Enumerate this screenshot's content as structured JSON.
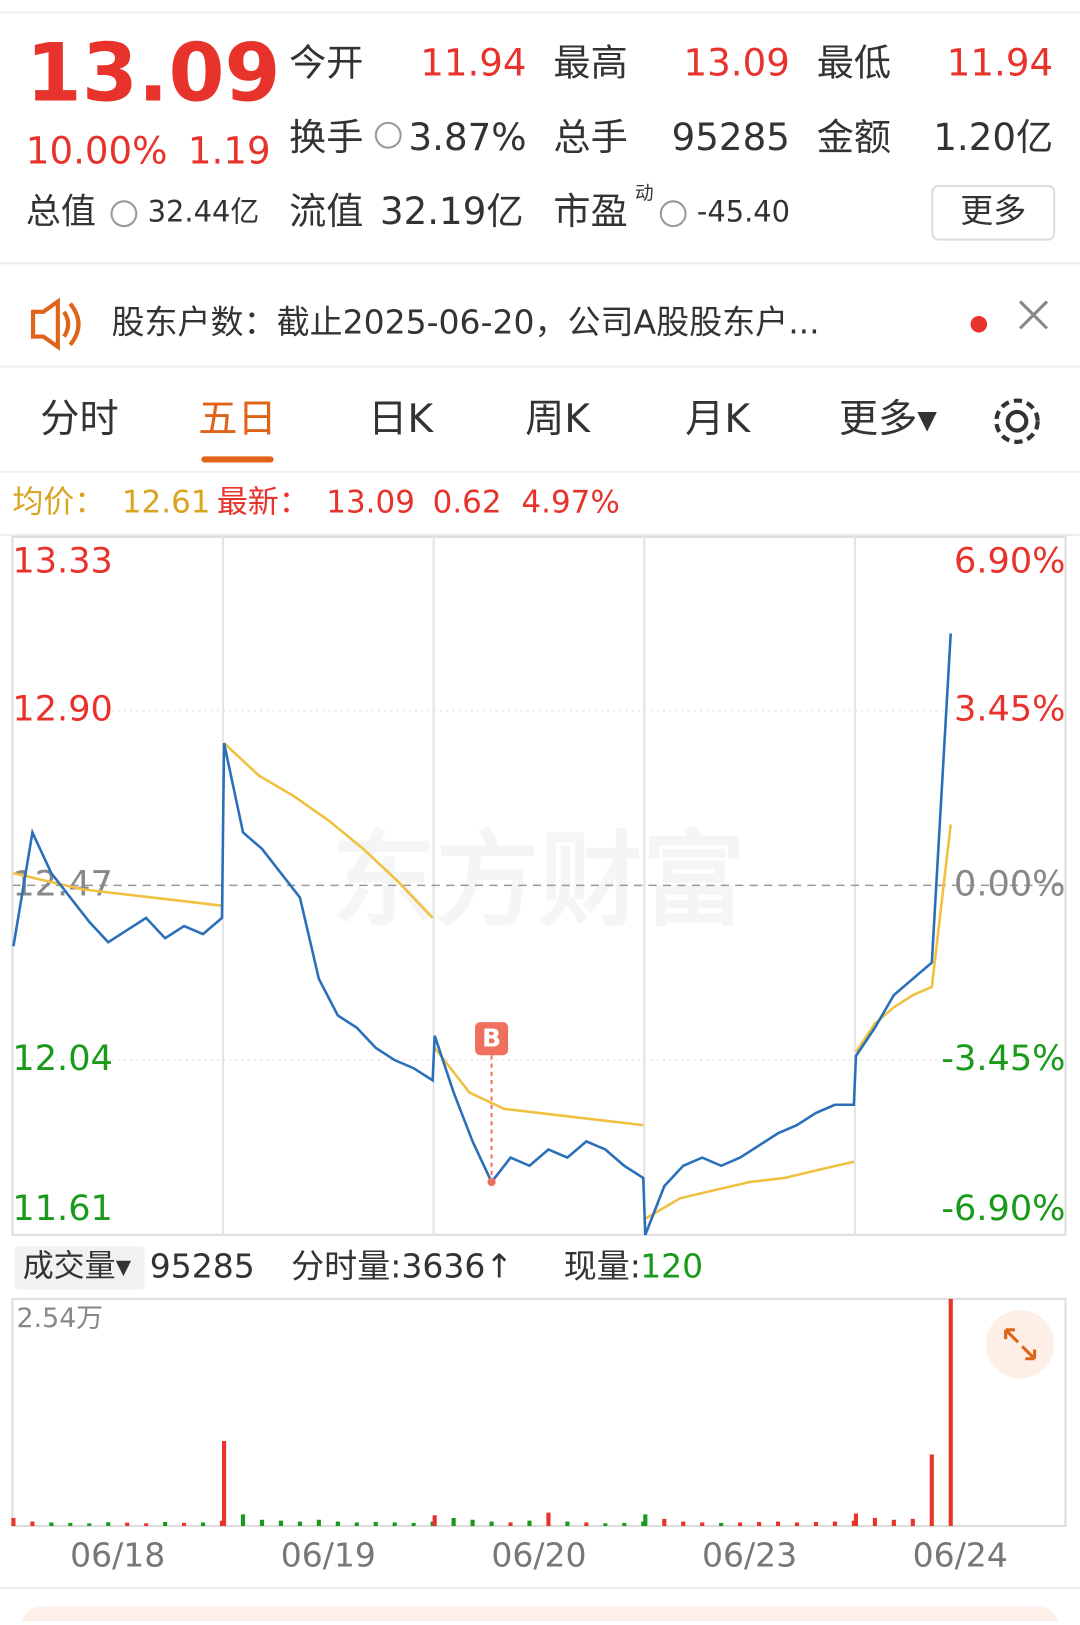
{
  "quote": {
    "price": "13.09",
    "change_pct": "10.00%",
    "change": "1.19",
    "market_cap_label": "总值",
    "market_cap": "32.44亿",
    "fields": [
      [
        {
          "label": "今开",
          "value": "11.94"
        },
        {
          "label": "最高",
          "value": "13.09"
        },
        {
          "label": "最低",
          "value": "11.94"
        }
      ],
      [
        {
          "label": "换手",
          "value": "3.87%"
        },
        {
          "label": "总手",
          "value": "95285"
        },
        {
          "label": "金额",
          "value": "1.20亿"
        }
      ],
      [
        {
          "label": "流值",
          "value": "32.19亿"
        },
        {
          "label": "市盈",
          "label_sup": "动",
          "value": "-45.40"
        }
      ]
    ],
    "more_button": "更多"
  },
  "notice": "股东户数：截止2025-06-20，公司A股股东户...",
  "tabs": [
    "分时",
    "五日",
    "日K",
    "周K",
    "月K",
    "更多▾"
  ],
  "active_tab": 1,
  "summary": {
    "avg_label": "均价：",
    "avg": "12.61",
    "latest_label": "最新：",
    "latest": "13.09",
    "change": "0.62",
    "change_pct": "4.97%"
  },
  "chart_data": {
    "type": "line",
    "watermark": "东方财富",
    "ylim": [
      11.61,
      13.33
    ],
    "yticks": [
      {
        "value": 13.33,
        "label": "13.33"
      },
      {
        "value": 12.9,
        "label": "12.90"
      },
      {
        "value": 12.47,
        "label": "12.47"
      },
      {
        "value": 12.04,
        "label": "12.04"
      },
      {
        "value": 11.61,
        "label": "11.61"
      }
    ],
    "y2lim": [
      -6.9,
      6.9
    ],
    "y2ticks": [
      {
        "value": 6.9,
        "label": "6.90%"
      },
      {
        "value": 3.45,
        "label": "3.45%"
      },
      {
        "value": 0,
        "label": "0.00%"
      },
      {
        "value": -3.45,
        "label": "-3.45%"
      },
      {
        "value": -6.9,
        "label": "-6.90%"
      }
    ],
    "days": [
      {
        "label": "06/18",
        "price": [
          12.32,
          12.6,
          12.5,
          12.44,
          12.38,
          12.33,
          12.36,
          12.39,
          12.34,
          12.37,
          12.35,
          12.39
        ],
        "average": [
          12.5,
          12.48,
          12.46,
          12.45,
          12.44,
          12.43,
          12.42
        ],
        "volume": [
          900,
          500,
          400,
          350,
          300,
          420,
          380,
          300,
          450,
          350,
          400,
          600
        ]
      },
      {
        "label": "06/19",
        "price": [
          12.82,
          12.6,
          12.56,
          12.5,
          12.44,
          12.24,
          12.15,
          12.12,
          12.07,
          12.04,
          12.02,
          11.99
        ],
        "average": [
          12.82,
          12.74,
          12.69,
          12.63,
          12.56,
          12.48,
          12.39
        ],
        "volume": [
          9500,
          1300,
          700,
          600,
          500,
          700,
          500,
          400,
          450,
          400,
          350,
          500
        ]
      },
      {
        "label": "06/20",
        "price": [
          12.1,
          11.96,
          11.84,
          11.74,
          11.8,
          11.78,
          11.82,
          11.8,
          11.84,
          11.82,
          11.78,
          11.75
        ],
        "average": [
          12.07,
          11.96,
          11.92,
          11.91,
          11.9,
          11.89,
          11.88
        ],
        "volume": [
          1200,
          900,
          700,
          500,
          400,
          600,
          1500,
          500,
          400,
          300,
          350,
          500
        ],
        "marker": {
          "label": "B",
          "index": 3
        }
      },
      {
        "label": "06/23",
        "price": [
          11.61,
          11.73,
          11.78,
          11.8,
          11.78,
          11.8,
          11.83,
          11.86,
          11.88,
          11.91,
          11.93,
          11.93
        ],
        "average": [
          11.65,
          11.7,
          11.72,
          11.74,
          11.75,
          11.77,
          11.79
        ],
        "volume": [
          1300,
          800,
          500,
          400,
          350,
          400,
          450,
          500,
          400,
          450,
          500,
          600
        ]
      },
      {
        "label": "06/24",
        "price": [
          12.05,
          12.12,
          12.2,
          12.24,
          12.28,
          13.09
        ],
        "average": [
          12.06,
          12.13,
          12.17,
          12.2,
          12.22,
          12.62
        ],
        "volume": [
          1400,
          900,
          700,
          800,
          8000,
          25400
        ]
      }
    ],
    "volume_header": {
      "label": "成交量▾",
      "total": "95285",
      "minute": "分时量:3636↑",
      "current_label": "现量:",
      "current": "120"
    },
    "volume_ylim": [
      0,
      25400
    ],
    "volume_yticks": [
      {
        "value": 25400,
        "label": "2.54万"
      }
    ]
  }
}
